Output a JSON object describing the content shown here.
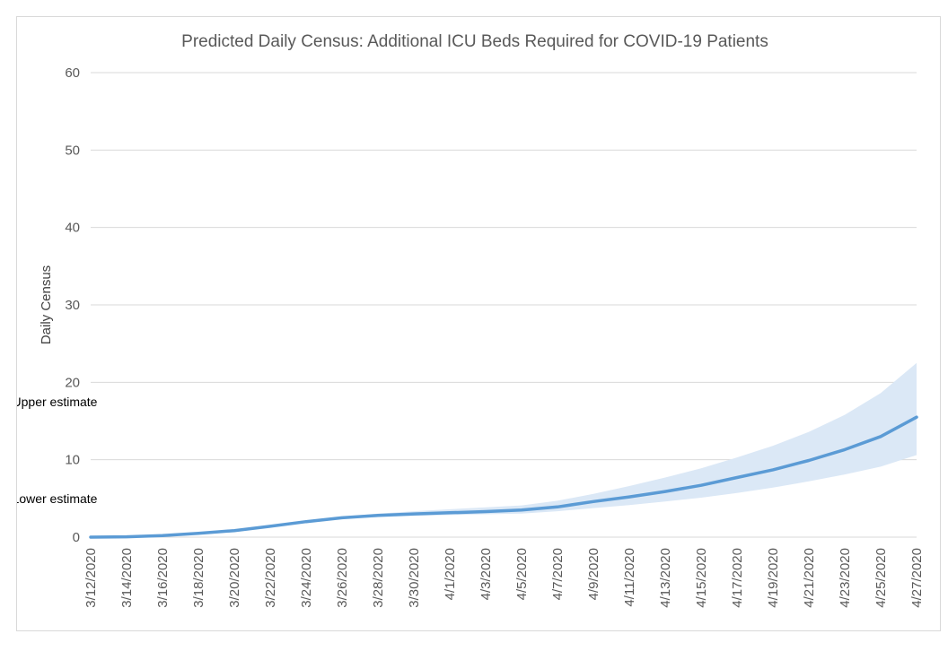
{
  "chart_data": {
    "type": "area",
    "title": "Predicted Daily Census: Additional ICU Beds Required for COVID-19 Patients",
    "xlabel": "",
    "ylabel": "Daily Census",
    "ylim": [
      0,
      60
    ],
    "yticks": [
      0,
      10,
      20,
      30,
      40,
      50,
      60
    ],
    "grid": true,
    "legend": "none",
    "x_tick_labels": [
      "3/12/2020",
      "3/14/2020",
      "3/16/2020",
      "3/18/2020",
      "3/20/2020",
      "3/22/2020",
      "3/24/2020",
      "3/26/2020",
      "3/28/2020",
      "3/30/2020",
      "4/1/2020",
      "4/3/2020",
      "4/5/2020",
      "4/7/2020",
      "4/9/2020",
      "4/11/2020",
      "4/13/2020",
      "4/15/2020",
      "4/17/2020",
      "4/19/2020",
      "4/21/2020",
      "4/23/2020",
      "4/25/2020",
      "4/27/2020"
    ],
    "x": [
      "3/12/2020",
      "3/14/2020",
      "3/16/2020",
      "3/18/2020",
      "3/20/2020",
      "3/22/2020",
      "3/24/2020",
      "3/26/2020",
      "3/28/2020",
      "3/30/2020",
      "4/1/2020",
      "4/3/2020",
      "4/5/2020",
      "4/7/2020",
      "4/9/2020",
      "4/11/2020",
      "4/13/2020",
      "4/15/2020",
      "4/17/2020",
      "4/19/2020",
      "4/21/2020",
      "4/23/2020",
      "4/25/2020",
      "4/27/2020"
    ],
    "series": [
      {
        "role": "median",
        "values": [
          0,
          0.05,
          0.2,
          0.5,
          0.85,
          1.4,
          2.0,
          2.5,
          2.8,
          3.0,
          3.15,
          3.3,
          3.5,
          3.9,
          4.6,
          5.2,
          5.9,
          6.7,
          7.7,
          8.7,
          9.9,
          11.3,
          13.0,
          15.5
        ]
      },
      {
        "role": "upper",
        "values": [
          0,
          0.05,
          0.2,
          0.5,
          0.85,
          1.4,
          2.05,
          2.65,
          3.05,
          3.35,
          3.6,
          3.85,
          4.1,
          4.7,
          5.6,
          6.6,
          7.7,
          8.9,
          10.3,
          11.8,
          13.6,
          15.8,
          18.6,
          22.5
        ]
      },
      {
        "role": "lower",
        "values": [
          0,
          0.05,
          0.2,
          0.5,
          0.85,
          1.4,
          1.95,
          2.4,
          2.6,
          2.75,
          2.85,
          2.95,
          3.05,
          3.35,
          3.75,
          4.15,
          4.6,
          5.1,
          5.7,
          6.4,
          7.2,
          8.1,
          9.1,
          10.6
        ]
      }
    ],
    "annotations": [
      {
        "text": "Upper estimate",
        "x": "4/18/2020",
        "y": 17.5
      },
      {
        "text": "Lower estimate",
        "x": "4/22/2020",
        "y": 5.0
      }
    ],
    "colors": {
      "line": "#5b9bd5",
      "band": "#dbe8f6"
    }
  }
}
